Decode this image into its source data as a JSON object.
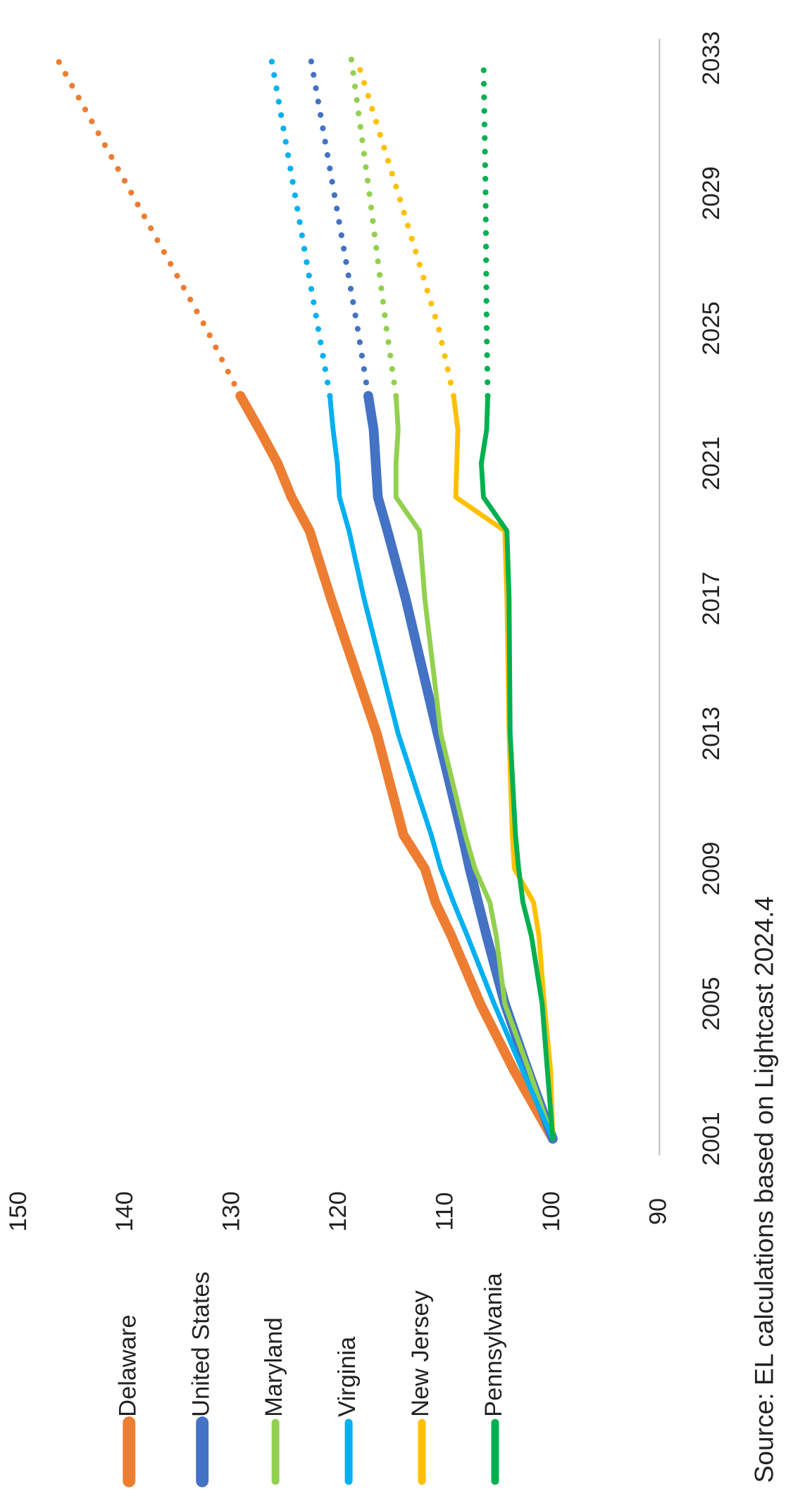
{
  "chart_data": {
    "type": "line",
    "x": [
      2001,
      2003,
      2005,
      2007,
      2008,
      2009,
      2010,
      2013,
      2017,
      2019,
      2020,
      2021,
      2022,
      2023,
      2025,
      2029,
      2033
    ],
    "forecast_from": 2023,
    "series": [
      {
        "name": "Delaware",
        "color": "#ed7d31",
        "width": 10,
        "values": [
          100,
          103.6,
          106.8,
          109.5,
          111,
          112,
          114,
          116.5,
          120.8,
          122.8,
          124.5,
          125.8,
          127.5,
          129.3,
          132.5,
          139.5,
          146.5
        ]
      },
      {
        "name": "United States",
        "color": "#4472c4",
        "width": 10,
        "values": [
          100,
          102.3,
          104.5,
          106.2,
          107,
          107.8,
          108.5,
          110.8,
          113.8,
          115.5,
          116.4,
          116.6,
          116.8,
          117.3,
          118.3,
          120.5,
          122.7
        ]
      },
      {
        "name": "Maryland",
        "color": "#92d050",
        "width": 5,
        "values": [
          100,
          102.2,
          104.5,
          105.3,
          105.9,
          107.3,
          108.2,
          110.5,
          112,
          112.5,
          114.7,
          114.7,
          114.5,
          114.7,
          115.6,
          117.2,
          118.9
        ]
      },
      {
        "name": "Virginia",
        "color": "#00b0f0",
        "width": 5,
        "values": [
          100,
          102.8,
          105.5,
          108,
          109.3,
          110.5,
          111.4,
          114.5,
          117.7,
          119.1,
          120,
          120.2,
          120.6,
          120.9,
          122,
          124.2,
          126.4
        ]
      },
      {
        "name": "New Jersey",
        "color": "#ffc000",
        "width": 5,
        "values": [
          100,
          100.2,
          100.8,
          101.3,
          101.8,
          103.6,
          103.8,
          104.1,
          104.3,
          104.5,
          109.1,
          109,
          108.9,
          109.3,
          110.7,
          114.5,
          118.4
        ]
      },
      {
        "name": "Pennsylvania",
        "color": "#00b050",
        "width": 5,
        "values": [
          100,
          100.5,
          101,
          102,
          102.8,
          103.2,
          103.5,
          104,
          104.1,
          104.3,
          106.5,
          106.7,
          106.2,
          106.1,
          106.2,
          106.3,
          106.5
        ]
      }
    ],
    "xlim": [
      2001,
      2033
    ],
    "xticks": [
      2001,
      2005,
      2009,
      2013,
      2017,
      2021,
      2025,
      2029,
      2033
    ],
    "ylim": [
      90,
      150
    ],
    "yticks": [
      90,
      100,
      110,
      120,
      130,
      140,
      150
    ],
    "source": "Source: EL calculations based on Lightcast 2024.4"
  }
}
